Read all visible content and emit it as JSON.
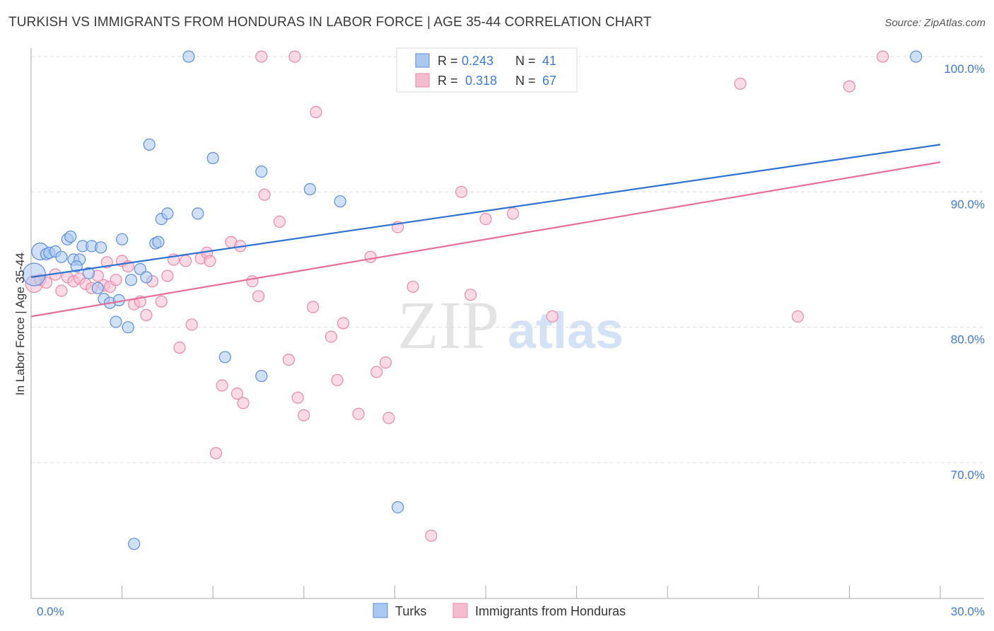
{
  "header": {
    "title": "TURKISH VS IMMIGRANTS FROM HONDURAS IN LABOR FORCE | AGE 35-44 CORRELATION CHART",
    "source": "Source: ZipAtlas.com"
  },
  "watermark": {
    "zip": "ZIP",
    "atlas": "atlas"
  },
  "colors": {
    "turks_fill": "#aac8f0",
    "turks_stroke": "#5b8fd9",
    "turks_line": "#2f72d0",
    "honduras_fill": "#f5bcd0",
    "honduras_stroke": "#e889a8",
    "honduras_line": "#e56f99",
    "value_text": "#3d7bd9",
    "grid": "#dddddd"
  },
  "chart_data": {
    "type": "scatter",
    "title": "TURKISH VS IMMIGRANTS FROM HONDURAS IN LABOR FORCE | AGE 35-44 CORRELATION CHART",
    "xlabel": "",
    "ylabel": "In Labor Force | Age 35-44",
    "xlim": [
      0,
      30
    ],
    "ylim": [
      60,
      101
    ],
    "x_tick_labels": [
      "0.0%",
      "30.0%"
    ],
    "y_ticks": [
      {
        "value": 100,
        "label": "100.0%"
      },
      {
        "value": 90,
        "label": "90.0%"
      },
      {
        "value": 80,
        "label": "80.0%"
      },
      {
        "value": 70,
        "label": "70.0%"
      }
    ],
    "grid": true,
    "legend_position": "bottom-center",
    "stats_box": [
      {
        "series": "Turks",
        "r_label": "R =",
        "r": "0.243",
        "n_label": "N =",
        "n": "41"
      },
      {
        "series": "Immigrants from Honduras",
        "r_label": "R =",
        "r": "0.318",
        "n_label": "N =",
        "n": "67"
      }
    ],
    "series": [
      {
        "name": "Turks",
        "trend": {
          "x": [
            0,
            30
          ],
          "y": [
            83.7,
            93.5
          ]
        },
        "points": [
          [
            0.1,
            83.9,
            3
          ],
          [
            0.3,
            85.6,
            2
          ],
          [
            0.5,
            85.4,
            1
          ],
          [
            0.6,
            85.5,
            1
          ],
          [
            0.8,
            85.6,
            1
          ],
          [
            1.0,
            85.2,
            1
          ],
          [
            1.2,
            86.5,
            1
          ],
          [
            1.3,
            86.7,
            1
          ],
          [
            1.4,
            85.0,
            1
          ],
          [
            1.6,
            85.0,
            1
          ],
          [
            1.7,
            86.0,
            1
          ],
          [
            1.9,
            84.0,
            1
          ],
          [
            2.0,
            86.0,
            1
          ],
          [
            2.2,
            82.9,
            1
          ],
          [
            2.3,
            85.9,
            1
          ],
          [
            2.4,
            82.1,
            1
          ],
          [
            2.6,
            81.8,
            1
          ],
          [
            2.8,
            80.4,
            1
          ],
          [
            2.9,
            82.0,
            1
          ],
          [
            3.0,
            86.5,
            1
          ],
          [
            3.2,
            80.0,
            1
          ],
          [
            3.3,
            83.5,
            1
          ],
          [
            3.4,
            64.0,
            1
          ],
          [
            3.6,
            84.3,
            1
          ],
          [
            3.8,
            83.7,
            1
          ],
          [
            3.9,
            93.5,
            1
          ],
          [
            4.1,
            86.2,
            1
          ],
          [
            4.2,
            86.3,
            1
          ],
          [
            4.3,
            88.0,
            1
          ],
          [
            4.5,
            88.4,
            1
          ],
          [
            5.2,
            100.0,
            1
          ],
          [
            5.5,
            88.4,
            1
          ],
          [
            6.0,
            92.5,
            1
          ],
          [
            6.4,
            77.8,
            1
          ],
          [
            7.6,
            91.5,
            1
          ],
          [
            7.6,
            76.4,
            1
          ],
          [
            9.2,
            90.2,
            1
          ],
          [
            10.2,
            89.3,
            1
          ],
          [
            12.1,
            66.7,
            1
          ],
          [
            29.2,
            100.0,
            1
          ],
          [
            1.5,
            84.5,
            1
          ]
        ]
      },
      {
        "name": "Immigrants from Honduras",
        "trend": {
          "x": [
            0,
            30
          ],
          "y": [
            80.8,
            92.2
          ]
        },
        "points": [
          [
            0.1,
            83.2,
            2
          ],
          [
            0.3,
            83.5,
            1
          ],
          [
            0.5,
            83.3,
            1
          ],
          [
            0.8,
            83.9,
            1
          ],
          [
            1.0,
            82.7,
            1
          ],
          [
            1.2,
            83.7,
            1
          ],
          [
            1.4,
            83.4,
            1
          ],
          [
            1.6,
            83.6,
            1
          ],
          [
            1.8,
            83.2,
            1
          ],
          [
            2.0,
            82.9,
            1
          ],
          [
            2.2,
            83.8,
            1
          ],
          [
            2.4,
            83.1,
            1
          ],
          [
            2.6,
            83.0,
            1
          ],
          [
            2.8,
            83.5,
            1
          ],
          [
            3.0,
            84.9,
            1
          ],
          [
            3.2,
            84.5,
            1
          ],
          [
            3.4,
            81.7,
            1
          ],
          [
            3.6,
            81.9,
            1
          ],
          [
            3.8,
            80.9,
            1
          ],
          [
            4.0,
            83.4,
            1
          ],
          [
            4.3,
            81.9,
            1
          ],
          [
            4.5,
            83.8,
            1
          ],
          [
            4.7,
            85.0,
            1
          ],
          [
            4.9,
            78.5,
            1
          ],
          [
            5.1,
            84.9,
            1
          ],
          [
            5.3,
            80.2,
            1
          ],
          [
            5.6,
            85.1,
            1
          ],
          [
            5.8,
            85.5,
            1
          ],
          [
            5.9,
            84.9,
            1
          ],
          [
            6.1,
            70.7,
            1
          ],
          [
            6.3,
            75.7,
            1
          ],
          [
            6.6,
            86.3,
            1
          ],
          [
            6.8,
            75.1,
            1
          ],
          [
            7.0,
            74.4,
            1
          ],
          [
            7.3,
            83.4,
            1
          ],
          [
            7.5,
            82.3,
            1
          ],
          [
            7.7,
            89.8,
            1
          ],
          [
            7.6,
            100.0,
            1
          ],
          [
            8.2,
            87.8,
            1
          ],
          [
            8.5,
            77.6,
            1
          ],
          [
            8.7,
            100.0,
            1
          ],
          [
            8.8,
            74.8,
            1
          ],
          [
            9.0,
            73.5,
            1
          ],
          [
            9.3,
            81.5,
            1
          ],
          [
            9.4,
            95.9,
            1
          ],
          [
            9.9,
            79.3,
            1
          ],
          [
            10.1,
            76.1,
            1
          ],
          [
            10.3,
            80.3,
            1
          ],
          [
            10.8,
            73.6,
            1
          ],
          [
            11.2,
            85.2,
            1
          ],
          [
            11.4,
            76.7,
            1
          ],
          [
            11.7,
            77.4,
            1
          ],
          [
            11.8,
            73.3,
            1
          ],
          [
            12.1,
            87.4,
            1
          ],
          [
            13.2,
            64.6,
            1
          ],
          [
            14.2,
            90.0,
            1
          ],
          [
            14.5,
            82.4,
            1
          ],
          [
            15.0,
            88.0,
            1
          ],
          [
            15.9,
            88.4,
            1
          ],
          [
            17.2,
            80.8,
            1
          ],
          [
            23.4,
            98.0,
            1
          ],
          [
            25.3,
            80.8,
            1
          ],
          [
            27.0,
            97.8,
            1
          ],
          [
            28.1,
            100.0,
            1
          ],
          [
            2.5,
            84.8,
            1
          ],
          [
            6.9,
            86.0,
            1
          ],
          [
            12.6,
            83.0,
            1
          ]
        ]
      }
    ]
  }
}
